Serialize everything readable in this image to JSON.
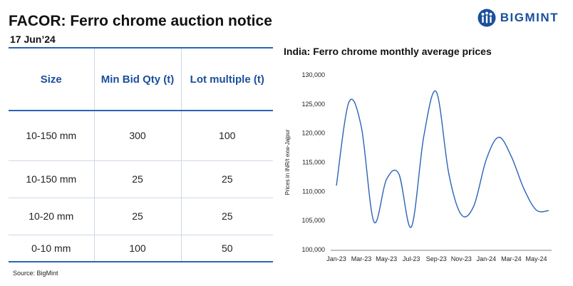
{
  "header": {
    "title": "FACOR: Ferro chrome auction notice",
    "date": "17 Jun’24"
  },
  "logo": {
    "text": "BIGMINT",
    "color": "#1a4f9c",
    "icon": "bigmint-people-icon"
  },
  "table": {
    "columns": [
      "Size",
      "Min Bid Qty (t)",
      "Lot multiple (t)"
    ],
    "rows": [
      [
        "10-150 mm",
        "300",
        "100"
      ],
      [
        "10-150 mm",
        "25",
        "25"
      ],
      [
        "10-20 mm",
        "25",
        "25"
      ],
      [
        "0-10 mm",
        "100",
        "50"
      ]
    ]
  },
  "source": "Source: BigMint",
  "chart_data": {
    "type": "line",
    "title": "India: Ferro chrome monthly average prices",
    "ylabel": "Prices in INR/t exw-Jajpur",
    "xlabel": "",
    "ylim": [
      100000,
      130000
    ],
    "yticks": [
      "100,000",
      "105,000",
      "110,000",
      "115,000",
      "120,000",
      "125,000",
      "130,000"
    ],
    "x": [
      "Jan-23",
      "Feb-23",
      "Mar-23",
      "Apr-23",
      "May-23",
      "Jun-23",
      "Jul-23",
      "Aug-23",
      "Sep-23",
      "Oct-23",
      "Nov-23",
      "Dec-23",
      "Jan-24",
      "Feb-24",
      "Mar-24",
      "Apr-24",
      "May-24",
      "Jun-24"
    ],
    "xtick_labels": [
      "Jan-23",
      "Mar-23",
      "May-23",
      "Jul-23",
      "Sep-23",
      "Nov-23",
      "Jan-24",
      "Mar-24",
      "May-24"
    ],
    "series": [
      {
        "name": "Ferro chrome",
        "color": "#2a64b5",
        "values": [
          111000,
          125300,
          121000,
          104800,
          112000,
          113000,
          103900,
          119500,
          127100,
          113000,
          106000,
          107500,
          115500,
          119300,
          116000,
          110500,
          106800,
          106700
        ]
      }
    ],
    "grid": false,
    "legend": "none"
  }
}
